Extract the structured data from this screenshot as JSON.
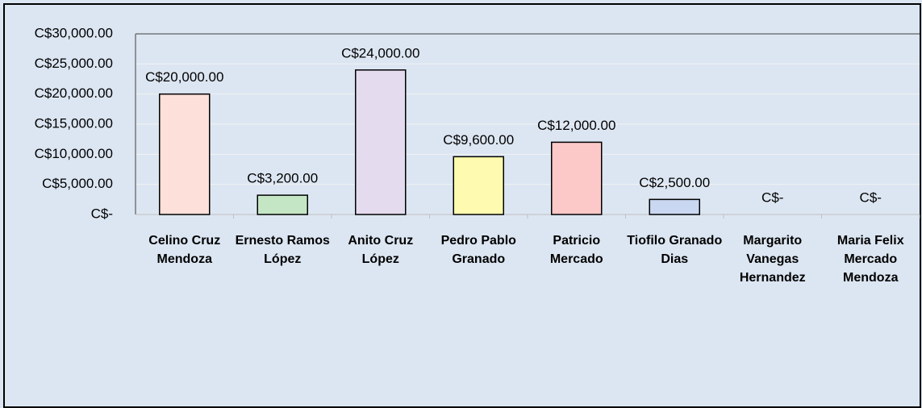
{
  "chart_data": {
    "type": "bar",
    "categories": [
      "Celino Cruz Mendoza",
      "Ernesto Ramos López",
      "Anito Cruz López",
      "Pedro Pablo Granado",
      "Patricio Mercado",
      "Tiofilo Granado Dias",
      "Margarito Vanegas Hernandez",
      "Maria Felix Mercado Mendoza"
    ],
    "values": [
      20000,
      3200,
      24000,
      9600,
      12000,
      2500,
      0,
      0
    ],
    "value_labels": [
      "C$20,000.00",
      "C$3,200.00",
      "C$24,000.00",
      "C$9,600.00",
      "C$12,000.00",
      "C$2,500.00",
      "C$-",
      "C$-"
    ],
    "colors": [
      "#fde0da",
      "#c4e6c4",
      "#e4dcee",
      "#fefbb0",
      "#fcc8c8",
      "#cad7f0",
      "#dddddd",
      "#dddddd"
    ],
    "ylim": [
      0,
      30000
    ],
    "yticks": [
      {
        "value": 0,
        "label": "C$-"
      },
      {
        "value": 5000,
        "label": "C$5,000.00"
      },
      {
        "value": 10000,
        "label": "C$10,000.00"
      },
      {
        "value": 15000,
        "label": "C$15,000.00"
      },
      {
        "value": 20000,
        "label": "C$20,000.00"
      },
      {
        "value": 25000,
        "label": "C$25,000.00"
      },
      {
        "value": 30000,
        "label": "C$30,000.00"
      }
    ],
    "grid": true
  }
}
